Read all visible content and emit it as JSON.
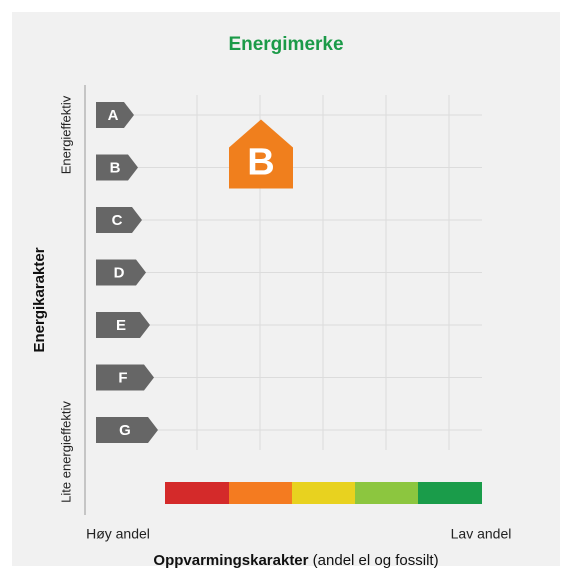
{
  "title": "Energimerke",
  "y_axis": {
    "label": "Energikarakter",
    "top": "Energieffektiv",
    "bottom": "Lite energieffektiv"
  },
  "grades": [
    "A",
    "B",
    "C",
    "D",
    "E",
    "F",
    "G"
  ],
  "marker": "B",
  "x_axis": {
    "label": "Oppvarmingskarakter",
    "note": "(andel el og fossilt)",
    "left": "Høy andel",
    "right": "Lav andel"
  }
}
